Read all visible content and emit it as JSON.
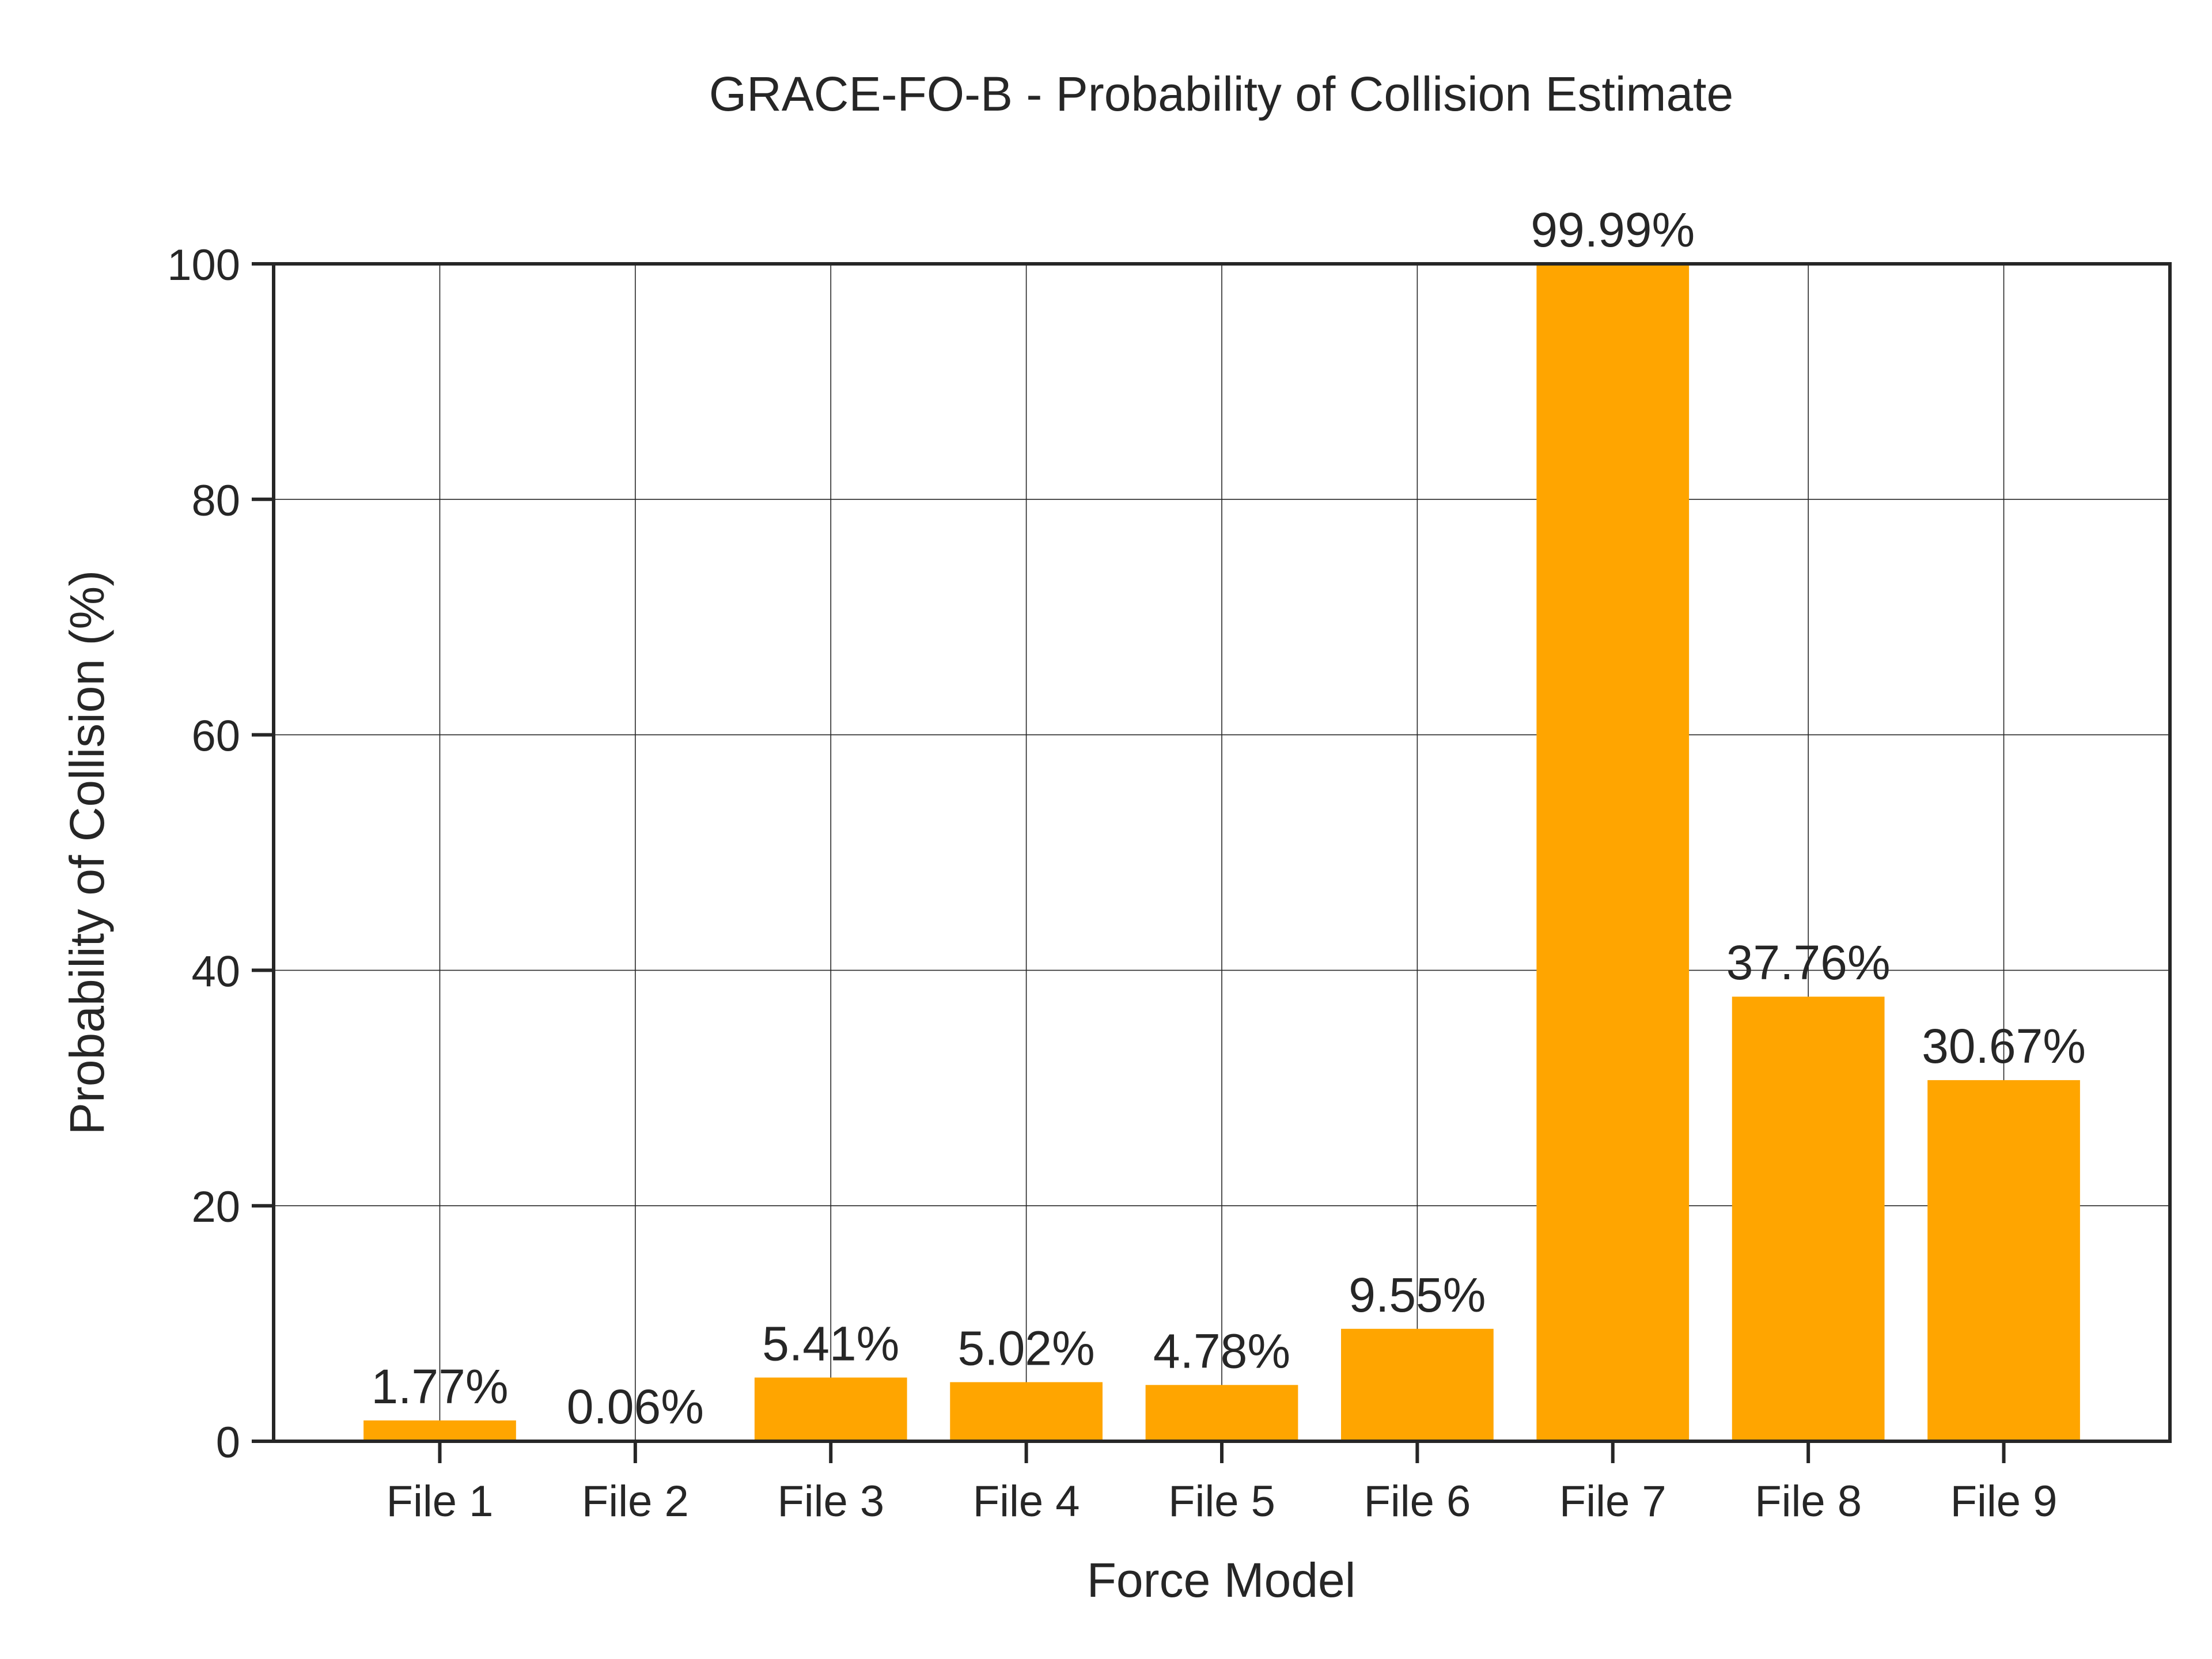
{
  "chart_data": {
    "type": "bar",
    "title": "GRACE-FO-B - Probability of Collision Estimate",
    "xlabel": "Force Model",
    "ylabel": "Probability of Collision (%)",
    "categories": [
      "File 1",
      "File 2",
      "File 3",
      "File 4",
      "File 5",
      "File 6",
      "File 7",
      "File 8",
      "File 9"
    ],
    "values": [
      1.77,
      0.06,
      5.41,
      5.02,
      4.78,
      9.55,
      99.99,
      37.76,
      30.67
    ],
    "data_labels": [
      "1.77%",
      "0.06%",
      "5.41%",
      "5.02%",
      "4.78%",
      "9.55%",
      "99.99%",
      "37.76%",
      "30.67%"
    ],
    "ylim": [
      0,
      100
    ],
    "yticks": [
      0,
      20,
      40,
      60,
      80,
      100
    ],
    "grid": true,
    "bar_color": "#FFA500",
    "axis_color": "#262626",
    "grid_color": "#262626"
  }
}
